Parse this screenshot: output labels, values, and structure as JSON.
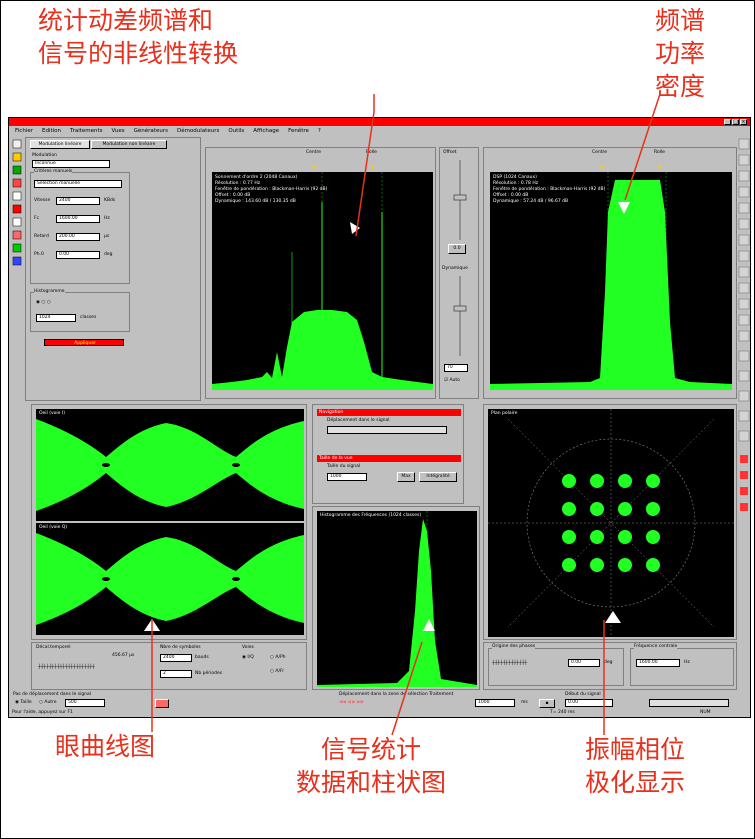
{
  "callouts": {
    "top_left_line1": "统计动差频谱和",
    "top_left_line2": "信号的非线性转换",
    "top_right_line1": "频谱",
    "top_right_line2": "功率",
    "top_right_line3": "密度",
    "eye": "眼曲线图",
    "stats_line1": "信号统计",
    "stats_line2": "数据和柱状图",
    "polar_line1": "振幅相位",
    "polar_line2": "极化显示"
  },
  "menu": [
    "Fichier",
    "Edition",
    "Traitements",
    "Vues",
    "Générateurs",
    "Démodulateurs",
    "Outils",
    "Affichage",
    "Fenêtre",
    "?"
  ],
  "left_panel": {
    "tab1": "Modulation linéaire",
    "tab2": "Modulation non linéaire",
    "modulation_label": "Modulation",
    "modulation_value": "Inconnue",
    "params_label": "Critères manuels",
    "params_value": "Sélection manuelle",
    "vitesse_label": "Vitesse",
    "vitesse_value": "2400",
    "vitesse_unit": "KBds",
    "fc_label": "Fc",
    "fc_value": "1600.00",
    "fc_unit": "Hz",
    "retard_label": "Retard",
    "retard_value": "200.00",
    "retard_unit": "µs",
    "ph_label": "Ph.0",
    "ph_value": "0.00",
    "ph_unit": "deg",
    "hist_label": "Histogramme",
    "hist_value": "1024",
    "hist_unit": "classes",
    "action_button": "Appliquer"
  },
  "spectrum_center": {
    "marker1": "Centre",
    "marker2": "Rolle",
    "text": "Sonnement d'ordre 2 (2048 Canaux)\nRésolution : 0.77 Hz\nFenêtre de pondération : Blackman-Harris (92 dB)\nOffset : 0.00 dB\nDynamique : 143.60 dB / 130.35 dB"
  },
  "controls": {
    "offset_label": "Offset",
    "offset_button": "0.0",
    "dyn_label": "Dynamique",
    "dyn_value": "70",
    "auto_label": "Auto"
  },
  "spectrum_right": {
    "marker1": "Centre",
    "marker2": "Rolle",
    "text": "DSP (1024 Canaux)\nRésolution : 0.78 Hz\nFenêtre de pondération : Blackman-Harris (92 dB)\nOffset : 0.00 dB\nDynamique : 57.24 dB / 96.67 dB"
  },
  "eye": {
    "label1": "Oeil (voie I)",
    "label2": "Oeil (voie Q)"
  },
  "nav": {
    "title1": "Navigation",
    "subtitle1": "Déplacement dans le signal",
    "title2": "Taille de la vue",
    "subtitle2": "Taille du signal",
    "size_value": "1000",
    "btn_max": "Max",
    "btn_integral": "Intégralité"
  },
  "histogram": {
    "label": "Histogramme des Fréquences (1024 classes)"
  },
  "polar": {
    "label": "Plan polaire",
    "phase_label": "Origine des phases",
    "phase_value": "0.00",
    "phase_unit": "deg",
    "freq_label": "Fréquence centrale",
    "freq_value": "1600.00",
    "freq_unit": "Hz"
  },
  "eye_controls": {
    "decal_label": "Décal.temporel",
    "decal_value": "456.67 µs",
    "nsym_label": "Nbre de symboles",
    "nsym_value": "2400",
    "nsym_unit": "bauds",
    "per_value": "2",
    "per_unit": "Nb périodes",
    "voies_label": "Voies",
    "voie_a": "I/Q",
    "voie_b": "A/Ph",
    "voie_c": "A/Fr"
  },
  "bottom": {
    "pas_label": "Pas de déplacement dans le signal",
    "taille_label": "Taille",
    "autre_label": "Autre",
    "autre_value": "500",
    "depl_label": "Déplacement dans la zone de sélection Traitement",
    "pas_value": "1000",
    "pas_unit": "ms",
    "debut_label": "Début du signal",
    "debut_value": "0.00",
    "status_left": "Pour l'aide, appuyez sur F1",
    "status_mid": "T= 240 ms",
    "status_right": "NUM"
  }
}
